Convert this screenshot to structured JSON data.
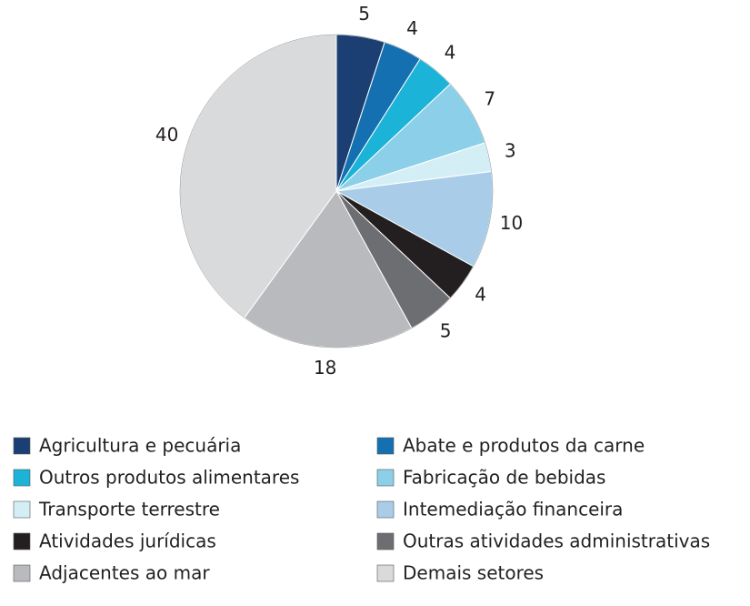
{
  "chart_data": {
    "type": "pie",
    "categories": [
      "Agricultura e pecuária",
      "Abate e produtos da carne",
      "Outros produtos alimentares",
      "Fabricação de bebidas",
      "Transporte terrestre",
      "Intemediação financeira",
      "Atividades jurídicas",
      "Outras atividades administrativas",
      "Adjacentes ao mar",
      "Demais setores"
    ],
    "values": [
      5,
      4,
      4,
      7,
      3,
      10,
      4,
      5,
      18,
      40
    ],
    "colors": [
      "#1b3f72",
      "#1470b0",
      "#1bb3d8",
      "#8ccfe8",
      "#d4eef6",
      "#a9cde8",
      "#231f20",
      "#6d6e71",
      "#b9babd",
      "#d9dadc"
    ]
  }
}
